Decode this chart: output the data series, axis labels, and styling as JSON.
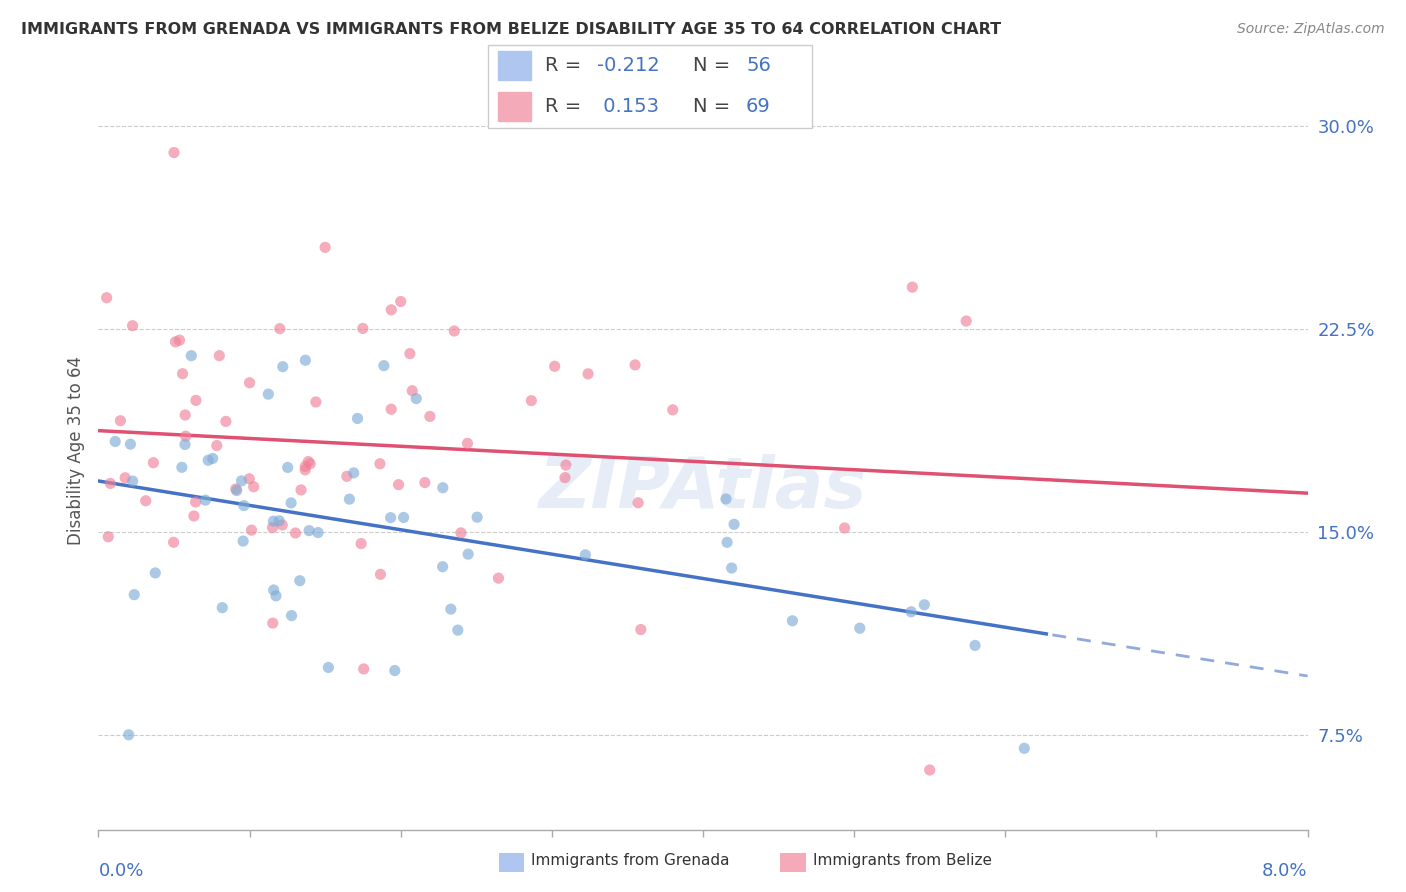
{
  "title": "IMMIGRANTS FROM GRENADA VS IMMIGRANTS FROM BELIZE DISABILITY AGE 35 TO 64 CORRELATION CHART",
  "source": "Source: ZipAtlas.com",
  "ylabel": "Disability Age 35 to 64",
  "xmin": 0.0,
  "xmax": 0.08,
  "ymin": 0.04,
  "ymax": 0.32,
  "yticks": [
    0.075,
    0.15,
    0.225,
    0.3
  ],
  "ytick_labels": [
    "7.5%",
    "15.0%",
    "22.5%",
    "30.0%"
  ],
  "legend1_color": "#aec6f0",
  "legend2_color": "#f4aab8",
  "dot_color_grenada": "#7facd6",
  "dot_color_belize": "#f08098",
  "trend_color_grenada": "#4472c4",
  "trend_color_belize": "#e05070",
  "watermark": "ZIPAtlas",
  "grenada_R": -0.212,
  "grenada_N": 56,
  "belize_R": 0.153,
  "belize_N": 69
}
